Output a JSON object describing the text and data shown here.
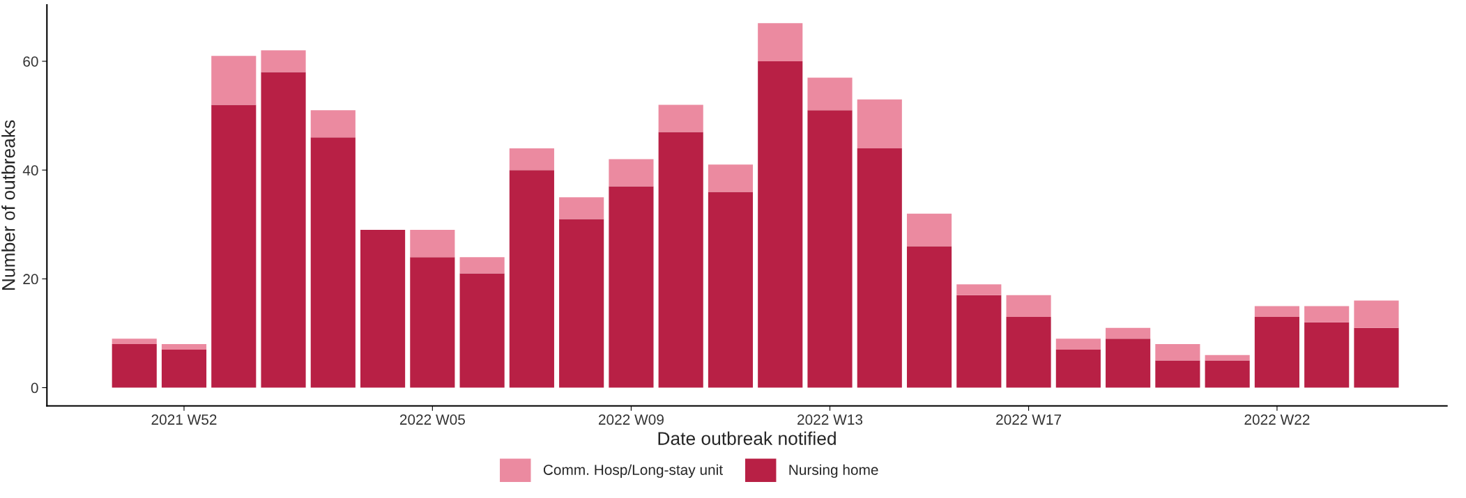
{
  "chart_data": {
    "type": "bar",
    "stacked": true,
    "xlabel": "Date outbreak notified",
    "ylabel": "Number of outbreaks",
    "categories": [
      null,
      "2021 W52",
      null,
      null,
      null,
      null,
      "2022 W05",
      null,
      null,
      null,
      "2022 W09",
      null,
      null,
      null,
      "2022 W13",
      null,
      null,
      null,
      "2022 W17",
      null,
      null,
      null,
      null,
      "2022 W22",
      null,
      null
    ],
    "series": [
      {
        "name": "Nursing home",
        "color": "#b82045",
        "values": [
          8,
          7,
          52,
          58,
          46,
          29,
          24,
          21,
          40,
          31,
          37,
          47,
          36,
          60,
          51,
          44,
          26,
          17,
          13,
          7,
          9,
          5,
          5,
          13,
          12,
          11
        ]
      },
      {
        "name": "Comm. Hosp/Long-stay unit",
        "color": "#eb8aa0",
        "values": [
          1,
          1,
          9,
          4,
          5,
          0,
          5,
          3,
          4,
          4,
          5,
          5,
          5,
          7,
          6,
          9,
          6,
          2,
          4,
          2,
          2,
          3,
          1,
          2,
          3,
          5
        ]
      }
    ],
    "ylim": [
      -3.35,
      70.35
    ],
    "yticks": [
      0,
      20,
      40,
      60
    ],
    "grid": false,
    "legend": "bottom"
  }
}
